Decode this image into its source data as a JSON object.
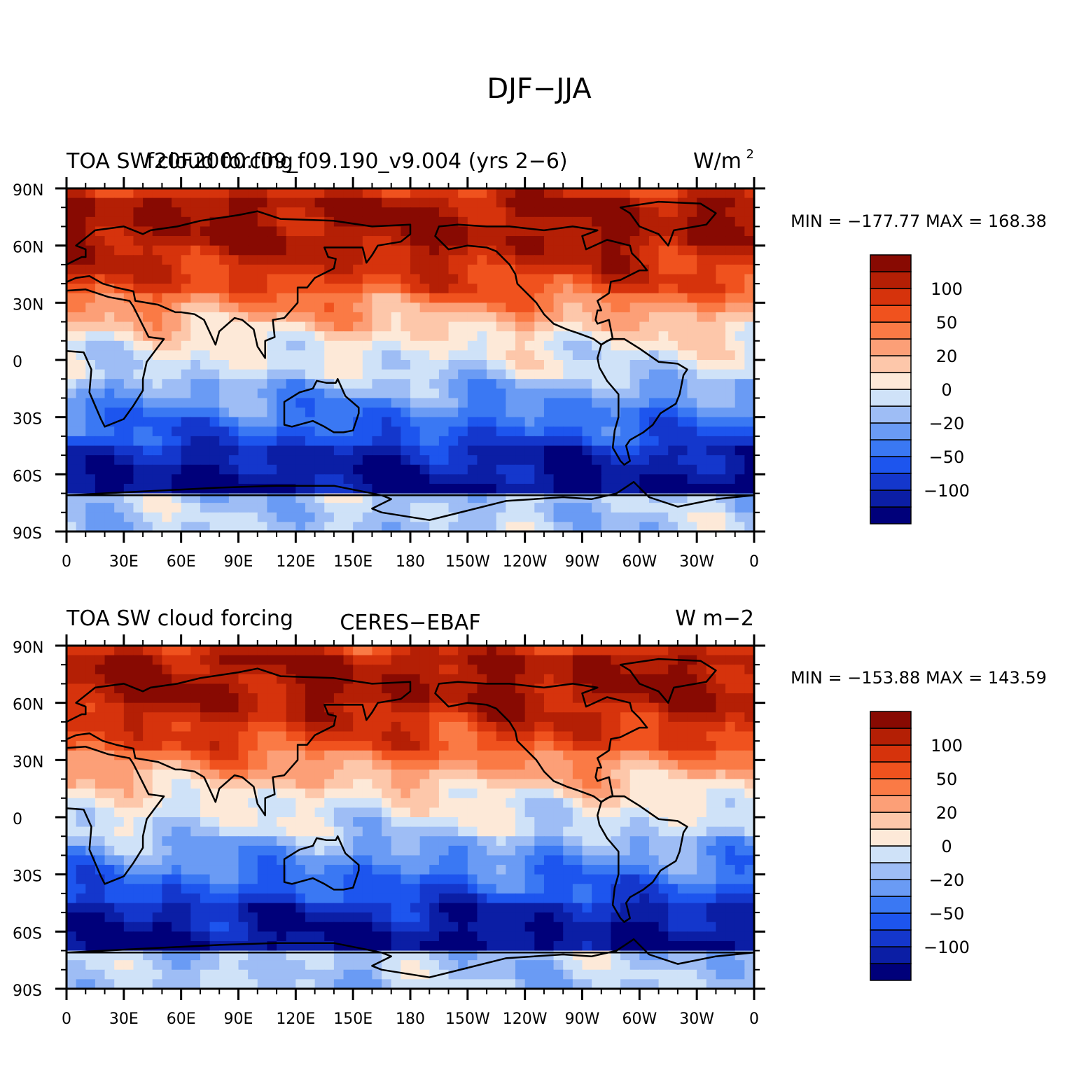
{
  "figure": {
    "title": "DJF−JJA"
  },
  "panels": [
    {
      "left_title": "TOA SW cloud forcing",
      "center_title": "f20F2000.f09_f09.190_v9.004 (yrs 2−6)",
      "units_text": "W/m",
      "units_sup": "2",
      "min_label": "MIN",
      "min_value": "−177.77",
      "max_label": "MAX",
      "max_value": "168.38",
      "field_seed": 1
    },
    {
      "left_title": "TOA SW cloud forcing",
      "center_title": "CERES−EBAF",
      "units_text": "W m−2",
      "units_sup": "",
      "min_label": "MIN",
      "min_value": "−153.88",
      "max_label": "MAX",
      "max_value": "143.59",
      "field_seed": 2
    }
  ],
  "axes": {
    "lat_ticks": [
      {
        "value": 90,
        "label": "90N"
      },
      {
        "value": 60,
        "label": "60N"
      },
      {
        "value": 30,
        "label": "30N"
      },
      {
        "value": 0,
        "label": "0"
      },
      {
        "value": -30,
        "label": "30S"
      },
      {
        "value": -60,
        "label": "60S"
      },
      {
        "value": -90,
        "label": "90S"
      }
    ],
    "lon_ticks": [
      {
        "value": 0,
        "label": "0"
      },
      {
        "value": 30,
        "label": "30E"
      },
      {
        "value": 60,
        "label": "60E"
      },
      {
        "value": 90,
        "label": "90E"
      },
      {
        "value": 120,
        "label": "120E"
      },
      {
        "value": 150,
        "label": "150E"
      },
      {
        "value": 180,
        "label": "180"
      },
      {
        "value": 210,
        "label": "150W"
      },
      {
        "value": 240,
        "label": "120W"
      },
      {
        "value": 270,
        "label": "90W"
      },
      {
        "value": 300,
        "label": "60W"
      },
      {
        "value": 330,
        "label": "30W"
      },
      {
        "value": 360,
        "label": "0"
      }
    ],
    "lon_range": [
      0,
      360
    ],
    "lat_range": [
      -90,
      90
    ]
  },
  "colorbar": {
    "colors": [
      "#00007a",
      "#0b1ea5",
      "#1437cc",
      "#1d55ee",
      "#3a78f3",
      "#6a9bf4",
      "#9ebdf5",
      "#cfe2f8",
      "#fde9d8",
      "#fdc7aa",
      "#fc9f77",
      "#fa7a45",
      "#f0521e",
      "#d6330c",
      "#b41f05",
      "#880a02"
    ],
    "labels": [
      {
        "index": 2,
        "text": "−100"
      },
      {
        "index": 4,
        "text": "−50"
      },
      {
        "index": 6,
        "text": "−20"
      },
      {
        "index": 8,
        "text": "0"
      },
      {
        "index": 10,
        "text": "20"
      },
      {
        "index": 12,
        "text": "50"
      },
      {
        "index": 14,
        "text": "100"
      }
    ]
  }
}
